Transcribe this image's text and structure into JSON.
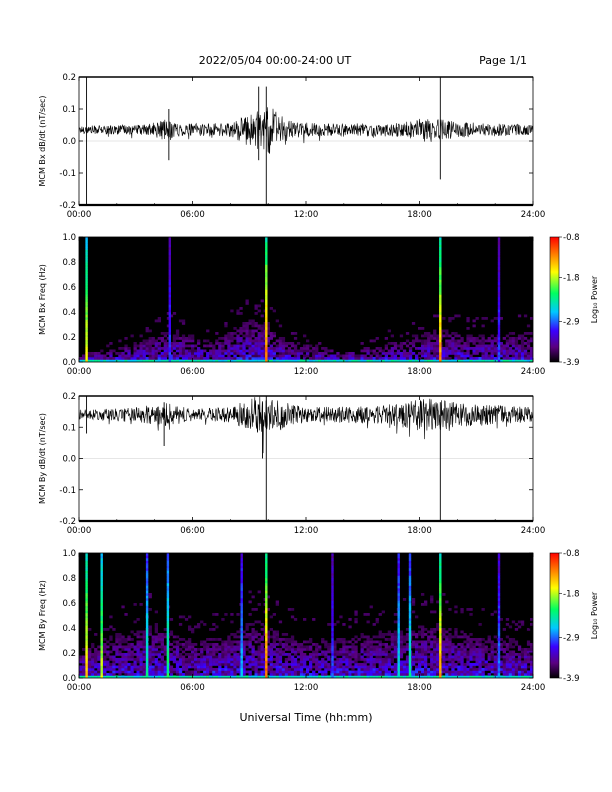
{
  "header": {
    "title": "2022/05/04  00:00-24:00 UT",
    "page": "Page 1/1"
  },
  "x_axis_label": "Universal Time (hh:mm)",
  "chart_data": [
    {
      "type": "line",
      "ylabel": "MCM Bx dB/dt (nT/sec)",
      "xlim": [
        "00:00",
        "24:00"
      ],
      "ylim": [
        -0.2,
        0.2
      ],
      "x_tick_labels": [
        "00:00",
        "06:00",
        "12:00",
        "18:00",
        "24:00"
      ],
      "y_tick_labels": [
        "-0.2",
        "-0.1",
        "0.0",
        "0.1",
        "0.2"
      ],
      "baseline": 0.035,
      "noise_profile": [
        {
          "t": "00:00",
          "amp": 0.008
        },
        {
          "t": "03:30",
          "amp": 0.01
        },
        {
          "t": "04:30",
          "amp": 0.02
        },
        {
          "t": "05:30",
          "amp": 0.012
        },
        {
          "t": "08:00",
          "amp": 0.014
        },
        {
          "t": "09:00",
          "amp": 0.03
        },
        {
          "t": "10:00",
          "amp": 0.05
        },
        {
          "t": "11:00",
          "amp": 0.018
        },
        {
          "t": "13:00",
          "amp": 0.012
        },
        {
          "t": "17:00",
          "amp": 0.014
        },
        {
          "t": "18:30",
          "amp": 0.025
        },
        {
          "t": "20:00",
          "amp": 0.015
        },
        {
          "t": "24:00",
          "amp": 0.01
        }
      ],
      "spikes": [
        {
          "t": "00:24",
          "min": -0.2,
          "max": 0.2
        },
        {
          "t": "09:54",
          "min": -0.2,
          "max": 0.17
        },
        {
          "t": "09:30",
          "min": -0.06,
          "max": 0.17
        },
        {
          "t": "19:06",
          "min": -0.12,
          "max": 0.2
        },
        {
          "t": "04:45",
          "min": -0.06,
          "max": 0.1
        }
      ]
    },
    {
      "type": "heatmap",
      "ylabel": "MCM Bx Freq (Hz)",
      "xlim": [
        "00:00",
        "24:00"
      ],
      "ylim": [
        0,
        1.0
      ],
      "x_tick_labels": [
        "00:00",
        "06:00",
        "12:00",
        "18:00",
        "24:00"
      ],
      "y_tick_labels": [
        "0.0",
        "0.2",
        "0.4",
        "0.6",
        "0.8",
        "1.0"
      ],
      "colorbar": {
        "label": "Log₁₀ Power",
        "min": -3.9,
        "max": -0.8,
        "tick_labels": [
          "-0.8",
          "-1.8",
          "-2.9",
          "-3.9"
        ]
      },
      "activity": [
        {
          "t": "00:00",
          "top": 0.08
        },
        {
          "t": "02:00",
          "top": 0.12
        },
        {
          "t": "04:00",
          "top": 0.25
        },
        {
          "t": "05:00",
          "top": 0.3
        },
        {
          "t": "07:00",
          "top": 0.18
        },
        {
          "t": "09:00",
          "top": 0.4
        },
        {
          "t": "10:00",
          "top": 0.35
        },
        {
          "t": "11:00",
          "top": 0.2
        },
        {
          "t": "14:00",
          "top": 0.1
        },
        {
          "t": "17:00",
          "top": 0.2
        },
        {
          "t": "19:00",
          "top": 0.3
        },
        {
          "t": "21:00",
          "top": 0.25
        },
        {
          "t": "24:00",
          "top": 0.28
        }
      ],
      "vertical_lines": [
        {
          "t": "00:24",
          "level": 0.75
        },
        {
          "t": "04:48",
          "level": 0.3
        },
        {
          "t": "09:54",
          "level": 0.9
        },
        {
          "t": "19:06",
          "level": 0.85
        },
        {
          "t": "22:12",
          "level": 0.3
        }
      ]
    },
    {
      "type": "line",
      "ylabel": "MCM By dB/dt (nT/sec)",
      "xlim": [
        "00:00",
        "24:00"
      ],
      "ylim": [
        -0.2,
        0.2
      ],
      "x_tick_labels": [
        "00:00",
        "06:00",
        "12:00",
        "18:00",
        "24:00"
      ],
      "y_tick_labels": [
        "-0.2",
        "-0.1",
        "0.0",
        "0.1",
        "0.2"
      ],
      "baseline": 0.14,
      "noise_profile": [
        {
          "t": "00:00",
          "amp": 0.01
        },
        {
          "t": "03:00",
          "amp": 0.015
        },
        {
          "t": "04:30",
          "amp": 0.025
        },
        {
          "t": "06:00",
          "amp": 0.012
        },
        {
          "t": "08:00",
          "amp": 0.015
        },
        {
          "t": "09:30",
          "amp": 0.04
        },
        {
          "t": "10:30",
          "amp": 0.03
        },
        {
          "t": "12:00",
          "amp": 0.015
        },
        {
          "t": "16:00",
          "amp": 0.018
        },
        {
          "t": "18:30",
          "amp": 0.035
        },
        {
          "t": "20:00",
          "amp": 0.025
        },
        {
          "t": "24:00",
          "amp": 0.015
        }
      ],
      "spikes": [
        {
          "t": "00:24",
          "min": 0.08,
          "max": 0.2
        },
        {
          "t": "09:54",
          "min": -0.2,
          "max": 0.2
        },
        {
          "t": "09:42",
          "min": 0.0,
          "max": 0.18
        },
        {
          "t": "19:06",
          "min": -0.2,
          "max": 0.18
        },
        {
          "t": "04:30",
          "min": 0.04,
          "max": 0.18
        }
      ]
    },
    {
      "type": "heatmap",
      "ylabel": "MCM By Freq (Hz)",
      "xlim": [
        "00:00",
        "24:00"
      ],
      "ylim": [
        0,
        1.0
      ],
      "x_tick_labels": [
        "00:00",
        "06:00",
        "12:00",
        "18:00",
        "24:00"
      ],
      "y_tick_labels": [
        "0.0",
        "0.2",
        "0.4",
        "0.6",
        "0.8",
        "1.0"
      ],
      "colorbar": {
        "label": "Log₁₀ Power",
        "min": -3.9,
        "max": -0.8,
        "tick_labels": [
          "-0.8",
          "-1.8",
          "-2.9",
          "-3.9"
        ]
      },
      "activity": [
        {
          "t": "00:00",
          "top": 0.25
        },
        {
          "t": "02:00",
          "top": 0.4
        },
        {
          "t": "04:00",
          "top": 0.5
        },
        {
          "t": "06:00",
          "top": 0.35
        },
        {
          "t": "08:00",
          "top": 0.4
        },
        {
          "t": "09:30",
          "top": 0.55
        },
        {
          "t": "11:00",
          "top": 0.4
        },
        {
          "t": "13:00",
          "top": 0.35
        },
        {
          "t": "15:00",
          "top": 0.4
        },
        {
          "t": "17:00",
          "top": 0.45
        },
        {
          "t": "19:00",
          "top": 0.5
        },
        {
          "t": "21:00",
          "top": 0.4
        },
        {
          "t": "24:00",
          "top": 0.35
        }
      ],
      "vertical_lines": [
        {
          "t": "00:24",
          "level": 0.8
        },
        {
          "t": "01:12",
          "level": 0.7
        },
        {
          "t": "03:36",
          "level": 0.5
        },
        {
          "t": "04:42",
          "level": 0.55
        },
        {
          "t": "08:36",
          "level": 0.4
        },
        {
          "t": "09:54",
          "level": 0.9
        },
        {
          "t": "13:24",
          "level": 0.3
        },
        {
          "t": "16:54",
          "level": 0.45
        },
        {
          "t": "17:30",
          "level": 0.5
        },
        {
          "t": "19:06",
          "level": 0.85
        },
        {
          "t": "22:12",
          "level": 0.35
        }
      ]
    }
  ]
}
